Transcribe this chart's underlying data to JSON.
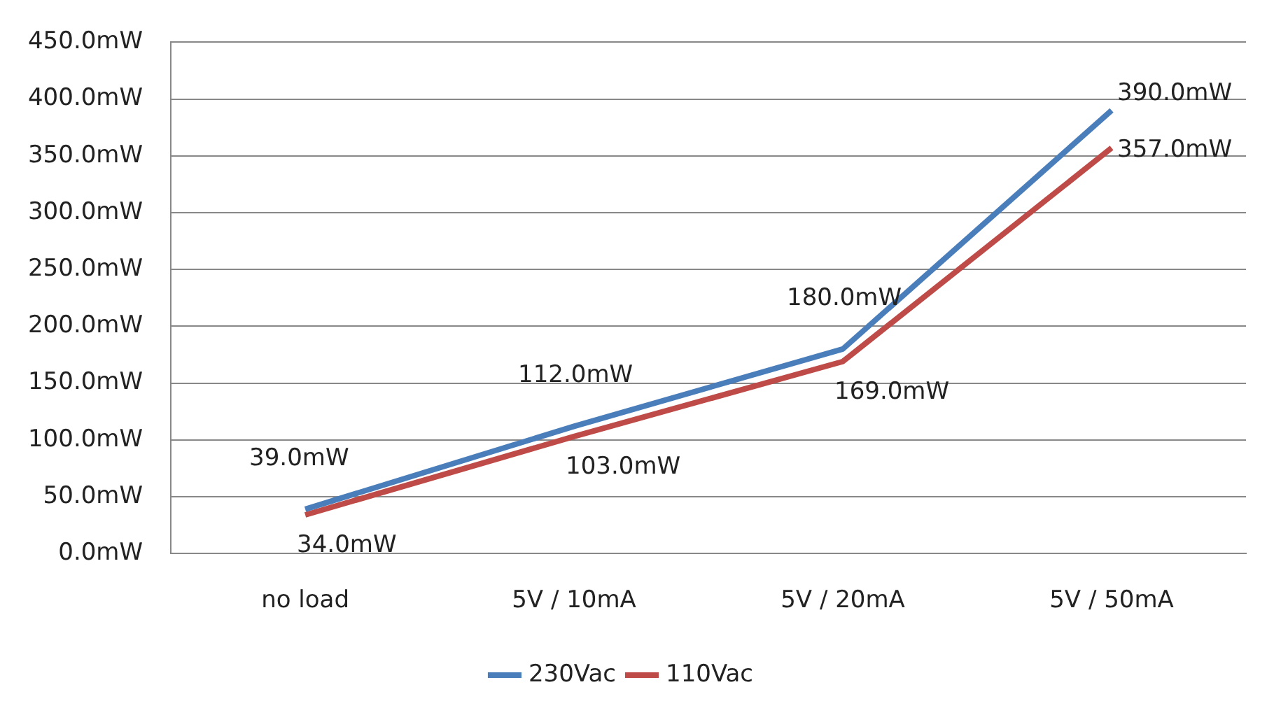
{
  "chart_data": {
    "type": "line",
    "categories": [
      "no load",
      "5V / 10mA",
      "5V / 20mA",
      "5V / 50mA"
    ],
    "series": [
      {
        "name": "230Vac",
        "color": "#4a7ebb",
        "values": [
          39,
          112,
          180,
          390
        ],
        "value_labels": [
          "39.0mW",
          "112.0mW",
          "180.0mW",
          "390.0mW"
        ]
      },
      {
        "name": "110Vac",
        "color": "#be4b48",
        "values": [
          34,
          103,
          169,
          357
        ],
        "value_labels": [
          "34.0mW",
          "103.0mW",
          "169.0mW",
          "357.0mW"
        ]
      }
    ],
    "ylim": [
      0,
      450
    ],
    "yticks": [
      {
        "value": 0,
        "label": "0.0mW"
      },
      {
        "value": 50,
        "label": "50.0mW"
      },
      {
        "value": 100,
        "label": "100.0mW"
      },
      {
        "value": 150,
        "label": "150.0mW"
      },
      {
        "value": 200,
        "label": "200.0mW"
      },
      {
        "value": 250,
        "label": "250.0mW"
      },
      {
        "value": 300,
        "label": "300.0mW"
      },
      {
        "value": 350,
        "label": "350.0mW"
      },
      {
        "value": 400,
        "label": "400.0mW"
      },
      {
        "value": 450,
        "label": "450.0mW"
      }
    ],
    "grid": "y",
    "legend": "bottom",
    "marker": "none",
    "line_style": "solid"
  }
}
